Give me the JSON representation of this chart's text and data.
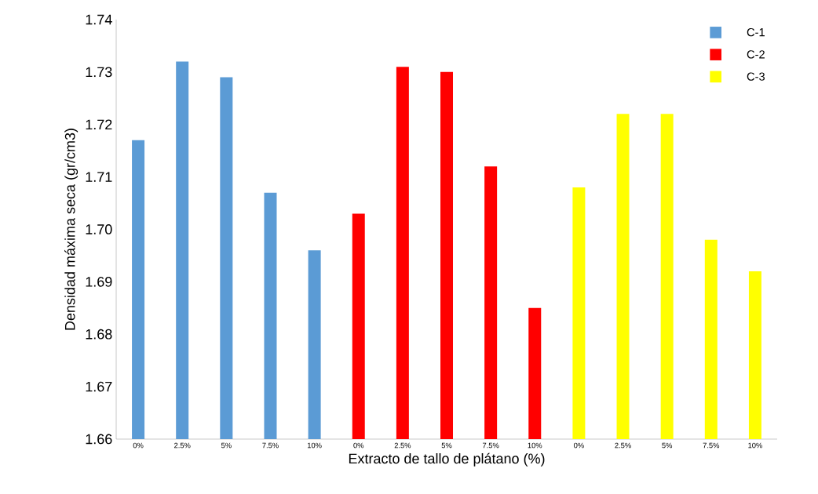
{
  "chart_data": {
    "type": "bar",
    "xlabel": "Extracto de tallo de plátano (%)",
    "ylabel": "Densidad  máxima seca (gr/cm3)",
    "categories": [
      "0%",
      "2.5%",
      "5%",
      "7.5%",
      "10%",
      "0%",
      "2.5%",
      "5%",
      "7.5%",
      "10%",
      "0%",
      "2.5%",
      "5%",
      "7.5%",
      "10%"
    ],
    "series": [
      {
        "name": "C-1",
        "color": "#5b9bd5",
        "values": [
          1.717,
          1.732,
          1.729,
          1.707,
          1.696,
          null,
          null,
          null,
          null,
          null,
          null,
          null,
          null,
          null,
          null
        ]
      },
      {
        "name": "C-2",
        "color": "#ff0000",
        "values": [
          null,
          null,
          null,
          null,
          null,
          1.703,
          1.731,
          1.73,
          1.712,
          1.685,
          null,
          null,
          null,
          null,
          null
        ]
      },
      {
        "name": "C-3",
        "color": "#ffff00",
        "values": [
          null,
          null,
          null,
          null,
          null,
          null,
          null,
          null,
          null,
          null,
          1.708,
          1.722,
          1.722,
          1.698,
          1.692
        ]
      }
    ],
    "ylim": [
      1.66,
      1.74
    ],
    "yticks": [
      {
        "value": 1.66,
        "label": "1.66"
      },
      {
        "value": 1.67,
        "label": "1.67"
      },
      {
        "value": 1.68,
        "label": "1.68"
      },
      {
        "value": 1.69,
        "label": "1.69"
      },
      {
        "value": 1.7,
        "label": "1.70"
      },
      {
        "value": 1.71,
        "label": "1.71"
      },
      {
        "value": 1.72,
        "label": "1.72"
      },
      {
        "value": 1.73,
        "label": "1.73"
      },
      {
        "value": 1.74,
        "label": "1.74"
      }
    ],
    "legend": "top right"
  }
}
